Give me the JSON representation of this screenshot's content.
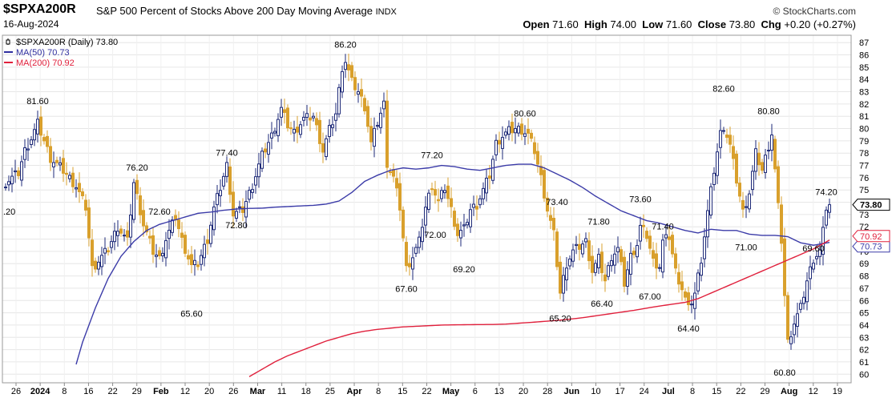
{
  "header": {
    "symbol": "$SPXA200R",
    "description": "S&P 500 Percent of Stocks Above 200 Day Moving Average",
    "exchange": "INDX",
    "date": "16-Aug-2024",
    "brand": "© StockCharts.com",
    "open_label": "Open",
    "open": "71.60",
    "high_label": "High",
    "high": "74.00",
    "low_label": "Low",
    "low": "71.60",
    "close_label": "Close",
    "close": "73.80",
    "chg_label": "Chg",
    "chg": "+0.20 (+0.27%)"
  },
  "legend": [
    {
      "label": "$SPXA200R (Daily) 73.80",
      "color": "#000000",
      "marker": "candle"
    },
    {
      "label": "MA(50) 70.73",
      "color": "#2f2f9f",
      "marker": "line"
    },
    {
      "label": "MA(200) 70.92",
      "color": "#e0203c",
      "marker": "line"
    }
  ],
  "colors": {
    "up": "#1e2a78",
    "down": "#d9a02c",
    "ma50": "#3b3ba8",
    "ma200": "#e0203c",
    "grid": "#e6e6e6"
  },
  "chart_data": {
    "type": "candlestick",
    "y_axis": {
      "min": 60,
      "max": 87,
      "ticks": [
        60,
        61,
        62,
        63,
        64,
        65,
        66,
        67,
        68,
        69,
        70,
        71,
        72,
        73,
        74,
        75,
        76,
        77,
        78,
        79,
        80,
        81,
        82,
        83,
        84,
        85,
        86,
        87
      ]
    },
    "x_ticks": [
      "26",
      "2024",
      "8",
      "16",
      "22",
      "29",
      "Feb",
      "12",
      "20",
      "26",
      "Mar",
      "11",
      "18",
      "25",
      "Apr",
      "8",
      "15",
      "22",
      "May",
      "6",
      "13",
      "20",
      "28",
      "Jun",
      "10",
      "17",
      "24",
      "Jul",
      "8",
      "15",
      "22",
      "29",
      "Aug",
      "12",
      "19"
    ],
    "bold_ticks": [
      "2024",
      "Feb",
      "Mar",
      "Apr",
      "May",
      "Jun",
      "Jul",
      "Aug"
    ],
    "price_tags": [
      {
        "value": "73.80",
        "color": "#000000"
      },
      {
        "value": "70.73",
        "color": "#3b3ba8"
      },
      {
        "value": "70.92",
        "color": "#e0203c"
      }
    ],
    "left_clip_label": ".20",
    "annotations": [
      {
        "text": "81.60",
        "bar": 10,
        "value": 81.6,
        "pos": "high"
      },
      {
        "text": "76.20",
        "bar": 41,
        "value": 76.2,
        "pos": "high"
      },
      {
        "text": "72.60",
        "bar": 48,
        "value": 72.6,
        "pos": "high"
      },
      {
        "text": "65.60",
        "bar": 58,
        "value": 65.6,
        "pos": "low"
      },
      {
        "text": "77.40",
        "bar": 69,
        "value": 77.4,
        "pos": "high"
      },
      {
        "text": "72.80",
        "bar": 72,
        "value": 72.8,
        "pos": "low"
      },
      {
        "text": "86.20",
        "bar": 106,
        "value": 86.2,
        "pos": "high"
      },
      {
        "text": "67.60",
        "bar": 125,
        "value": 67.6,
        "pos": "low"
      },
      {
        "text": "77.20",
        "bar": 133,
        "value": 77.2,
        "pos": "high"
      },
      {
        "text": "72.00",
        "bar": 134,
        "value": 72.0,
        "pos": "low"
      },
      {
        "text": "69.20",
        "bar": 143,
        "value": 69.2,
        "pos": "low"
      },
      {
        "text": "80.60",
        "bar": 162,
        "value": 80.6,
        "pos": "high"
      },
      {
        "text": "73.40",
        "bar": 172,
        "value": 73.4,
        "pos": "high"
      },
      {
        "text": "65.20",
        "bar": 173,
        "value": 65.2,
        "pos": "low"
      },
      {
        "text": "71.80",
        "bar": 185,
        "value": 71.8,
        "pos": "high"
      },
      {
        "text": "66.40",
        "bar": 186,
        "value": 66.4,
        "pos": "low"
      },
      {
        "text": "73.60",
        "bar": 198,
        "value": 73.6,
        "pos": "high"
      },
      {
        "text": "67.00",
        "bar": 201,
        "value": 67.0,
        "pos": "low"
      },
      {
        "text": "71.40",
        "bar": 205,
        "value": 71.4,
        "pos": "high"
      },
      {
        "text": "64.40",
        "bar": 213,
        "value": 64.4,
        "pos": "low"
      },
      {
        "text": "82.60",
        "bar": 224,
        "value": 82.6,
        "pos": "high"
      },
      {
        "text": "71.00",
        "bar": 231,
        "value": 71.0,
        "pos": "low"
      },
      {
        "text": "80.80",
        "bar": 238,
        "value": 80.8,
        "pos": "high"
      },
      {
        "text": "60.80",
        "bar": 243,
        "value": 60.8,
        "pos": "low"
      },
      {
        "text": "69.60",
        "bar": 252,
        "value": 69.6,
        "pos": "high"
      },
      {
        "text": "74.20",
        "bar": 256,
        "value": 74.2,
        "pos": "high"
      }
    ],
    "close_points": [
      [
        0,
        75.6
      ],
      [
        4,
        76.4
      ],
      [
        6,
        78.2
      ],
      [
        8,
        79.2
      ],
      [
        10,
        80.4
      ],
      [
        14,
        77.6
      ],
      [
        18,
        76.6
      ],
      [
        22,
        75.3
      ],
      [
        25,
        73.6
      ],
      [
        27,
        68.6
      ],
      [
        32,
        70.2
      ],
      [
        35,
        72.0
      ],
      [
        38,
        70.8
      ],
      [
        40,
        75.6
      ],
      [
        43,
        72.2
      ],
      [
        46,
        70.0
      ],
      [
        48,
        69.4
      ],
      [
        50,
        71.0
      ],
      [
        53,
        72.8
      ],
      [
        55,
        70.9
      ],
      [
        58,
        68.8
      ],
      [
        60,
        69.0
      ],
      [
        63,
        71.0
      ],
      [
        65,
        73.5
      ],
      [
        67,
        75.2
      ],
      [
        69,
        77.0
      ],
      [
        71,
        73.0
      ],
      [
        74,
        73.4
      ],
      [
        77,
        75.4
      ],
      [
        80,
        77.8
      ],
      [
        83,
        79.4
      ],
      [
        86,
        81.6
      ],
      [
        88,
        80.3
      ],
      [
        90,
        79.7
      ],
      [
        93,
        80.8
      ],
      [
        96,
        81.0
      ],
      [
        99,
        78.2
      ],
      [
        101,
        79.9
      ],
      [
        103,
        81.2
      ],
      [
        105,
        85.0
      ],
      [
        106,
        85.5
      ],
      [
        108,
        83.8
      ],
      [
        110,
        83.0
      ],
      [
        112,
        81.8
      ],
      [
        114,
        78.8
      ],
      [
        116,
        80.5
      ],
      [
        118,
        82.0
      ],
      [
        119,
        77.2
      ],
      [
        121,
        76.0
      ],
      [
        123,
        73.6
      ],
      [
        125,
        68.6
      ],
      [
        127,
        69.6
      ],
      [
        129,
        70.8
      ],
      [
        131,
        73.6
      ],
      [
        133,
        75.4
      ],
      [
        135,
        74.0
      ],
      [
        137,
        75.2
      ],
      [
        139,
        73.4
      ],
      [
        141,
        71.4
      ],
      [
        143,
        71.8
      ],
      [
        145,
        73.4
      ],
      [
        147,
        73.8
      ],
      [
        149,
        75.0
      ],
      [
        151,
        76.2
      ],
      [
        153,
        78.8
      ],
      [
        155,
        79.4
      ],
      [
        157,
        79.8
      ],
      [
        159,
        80.0
      ],
      [
        161,
        79.9
      ],
      [
        163,
        79.5
      ],
      [
        165,
        78.2
      ],
      [
        167,
        76.0
      ],
      [
        169,
        73.4
      ],
      [
        171,
        71.4
      ],
      [
        173,
        66.6
      ],
      [
        175,
        69.0
      ],
      [
        177,
        70.0
      ],
      [
        179,
        70.4
      ],
      [
        181,
        70.8
      ],
      [
        183,
        68.4
      ],
      [
        185,
        69.4
      ],
      [
        187,
        67.6
      ],
      [
        189,
        69.6
      ],
      [
        191,
        70.2
      ],
      [
        193,
        67.4
      ],
      [
        195,
        69.6
      ],
      [
        197,
        70.6
      ],
      [
        198,
        72.0
      ],
      [
        200,
        71.3
      ],
      [
        202,
        69.2
      ],
      [
        204,
        68.8
      ],
      [
        205,
        70.8
      ],
      [
        207,
        71.2
      ],
      [
        209,
        68.4
      ],
      [
        211,
        67.0
      ],
      [
        213,
        65.3
      ],
      [
        215,
        66.6
      ],
      [
        217,
        69.4
      ],
      [
        219,
        73.2
      ],
      [
        221,
        76.6
      ],
      [
        223,
        79.6
      ],
      [
        224,
        80.2
      ],
      [
        226,
        78.6
      ],
      [
        228,
        75.8
      ],
      [
        230,
        73.2
      ],
      [
        232,
        74.8
      ],
      [
        234,
        78.0
      ],
      [
        236,
        76.6
      ],
      [
        238,
        78.6
      ],
      [
        239,
        79.6
      ],
      [
        241,
        73.6
      ],
      [
        242,
        70.9
      ],
      [
        243,
        66.4
      ],
      [
        244,
        62.6
      ],
      [
        246,
        64.2
      ],
      [
        248,
        65.4
      ],
      [
        250,
        67.6
      ],
      [
        252,
        69.4
      ],
      [
        254,
        70.0
      ],
      [
        255,
        71.6
      ],
      [
        256,
        73.6
      ],
      [
        257,
        73.8
      ]
    ],
    "ma50_points": [
      [
        22,
        60.8
      ],
      [
        24,
        62.6
      ],
      [
        28,
        65.4
      ],
      [
        32,
        67.8
      ],
      [
        36,
        69.6
      ],
      [
        40,
        70.8
      ],
      [
        44,
        71.7
      ],
      [
        48,
        72.2
      ],
      [
        52,
        72.5
      ],
      [
        56,
        72.8
      ],
      [
        60,
        73.1
      ],
      [
        64,
        73.2
      ],
      [
        68,
        73.35
      ],
      [
        72,
        73.45
      ],
      [
        76,
        73.5
      ],
      [
        80,
        73.52
      ],
      [
        84,
        73.6
      ],
      [
        88,
        73.65
      ],
      [
        92,
        73.7
      ],
      [
        96,
        73.75
      ],
      [
        100,
        73.85
      ],
      [
        104,
        74.1
      ],
      [
        108,
        74.8
      ],
      [
        112,
        75.7
      ],
      [
        116,
        76.2
      ],
      [
        120,
        76.6
      ],
      [
        124,
        76.8
      ],
      [
        128,
        76.7
      ],
      [
        132,
        76.8
      ],
      [
        136,
        77.0
      ],
      [
        140,
        76.9
      ],
      [
        144,
        76.7
      ],
      [
        148,
        76.6
      ],
      [
        152,
        76.8
      ],
      [
        156,
        77.0
      ],
      [
        160,
        77.1
      ],
      [
        164,
        77.1
      ],
      [
        168,
        76.8
      ],
      [
        172,
        76.3
      ],
      [
        176,
        75.8
      ],
      [
        180,
        75.2
      ],
      [
        184,
        74.5
      ],
      [
        188,
        73.9
      ],
      [
        192,
        73.3
      ],
      [
        196,
        72.9
      ],
      [
        200,
        72.5
      ],
      [
        204,
        72.3
      ],
      [
        208,
        72.0
      ],
      [
        212,
        71.7
      ],
      [
        216,
        71.5
      ],
      [
        220,
        71.8
      ],
      [
        224,
        71.7
      ],
      [
        228,
        71.7
      ],
      [
        232,
        71.4
      ],
      [
        236,
        71.3
      ],
      [
        240,
        71.3
      ],
      [
        244,
        71.2
      ],
      [
        248,
        70.7
      ],
      [
        252,
        70.5
      ],
      [
        257,
        70.73
      ]
    ],
    "ma200_points": [
      [
        76,
        59.8
      ],
      [
        80,
        60.4
      ],
      [
        84,
        61.0
      ],
      [
        88,
        61.5
      ],
      [
        92,
        61.9
      ],
      [
        96,
        62.3
      ],
      [
        100,
        62.7
      ],
      [
        104,
        63.0
      ],
      [
        108,
        63.3
      ],
      [
        112,
        63.5
      ],
      [
        116,
        63.65
      ],
      [
        120,
        63.75
      ],
      [
        124,
        63.85
      ],
      [
        128,
        63.9
      ],
      [
        132,
        63.95
      ],
      [
        136,
        64.0
      ],
      [
        140,
        64.02
      ],
      [
        144,
        64.03
      ],
      [
        148,
        64.04
      ],
      [
        152,
        64.05
      ],
      [
        156,
        64.08
      ],
      [
        160,
        64.15
      ],
      [
        164,
        64.22
      ],
      [
        168,
        64.3
      ],
      [
        172,
        64.38
      ],
      [
        176,
        64.48
      ],
      [
        180,
        64.6
      ],
      [
        184,
        64.75
      ],
      [
        188,
        64.9
      ],
      [
        192,
        65.05
      ],
      [
        196,
        65.2
      ],
      [
        200,
        65.38
      ],
      [
        204,
        65.55
      ],
      [
        208,
        65.7
      ],
      [
        212,
        65.85
      ],
      [
        216,
        66.15
      ],
      [
        220,
        66.6
      ],
      [
        224,
        67.05
      ],
      [
        228,
        67.5
      ],
      [
        232,
        67.95
      ],
      [
        236,
        68.4
      ],
      [
        240,
        68.85
      ],
      [
        244,
        69.3
      ],
      [
        248,
        69.75
      ],
      [
        252,
        70.2
      ],
      [
        257,
        70.92
      ]
    ]
  }
}
